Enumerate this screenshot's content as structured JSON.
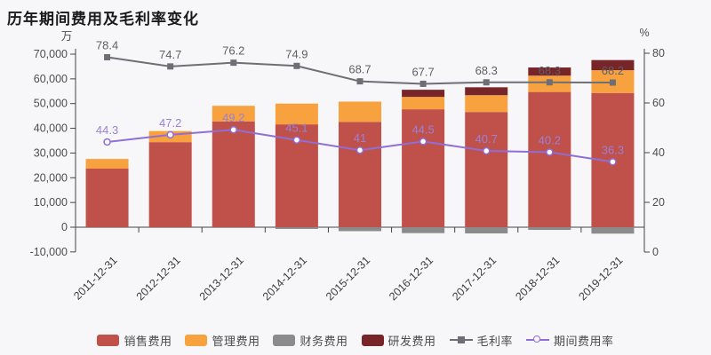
{
  "title": "历年期间费用及毛利率变化",
  "chart_data": {
    "type": "bar+line combo (stacked bars, dual axis)",
    "categories": [
      "2011-12-31",
      "2012-12-31",
      "2013-12-31",
      "2014-12-31",
      "2015-12-31",
      "2016-12-31",
      "2017-12-31",
      "2018-12-31",
      "2019-12-31"
    ],
    "left_axis": {
      "unit": "万",
      "min": -10000,
      "max": 70000,
      "step": 10000
    },
    "right_axis": {
      "unit": "%",
      "min": 0,
      "max": 80,
      "step": 20
    },
    "grid": "off",
    "legend_position": "bottom-center",
    "bar_series": [
      {
        "key": "sales-expense",
        "name": "销售费用",
        "color": "#c0504a",
        "values": [
          23700,
          34400,
          42800,
          41600,
          42600,
          47700,
          46600,
          54700,
          54300
        ]
      },
      {
        "key": "admin-expense",
        "name": "管理费用",
        "color": "#f8a13f",
        "values": [
          3900,
          4500,
          6300,
          8400,
          8200,
          5000,
          6800,
          6600,
          9200
        ]
      },
      {
        "key": "finance-expense",
        "name": "财务费用",
        "color": "#8b8b8b",
        "values": [
          0,
          0,
          0,
          -700,
          -1600,
          -2400,
          -2500,
          -1100,
          -2600
        ]
      },
      {
        "key": "rd-expense",
        "name": "研发费用",
        "color": "#78252a",
        "values": [
          0,
          0,
          0,
          0,
          0,
          2900,
          3200,
          3300,
          4100
        ]
      }
    ],
    "line_series": [
      {
        "key": "gross-margin",
        "name": "毛利率",
        "axis": "right",
        "marker": "square",
        "color": "#6e6e76",
        "label_color": "#5f5f66",
        "values": [
          78.4,
          74.7,
          76.2,
          74.9,
          68.7,
          67.7,
          68.3,
          68.3,
          68.2
        ]
      },
      {
        "key": "period-expense-ratio",
        "name": "期间费用率",
        "axis": "right",
        "marker": "circle-open",
        "color": "#8f6ed5",
        "label_color": "#9b80d6",
        "values": [
          44.3,
          47.2,
          49.2,
          45.1,
          41,
          44.5,
          40.7,
          40.2,
          36.3
        ]
      }
    ],
    "colors": {
      "background": "#f7f7f9",
      "axis": "#444444",
      "tick_label": "#4d4d4d",
      "title": "#1a1a1a"
    }
  }
}
